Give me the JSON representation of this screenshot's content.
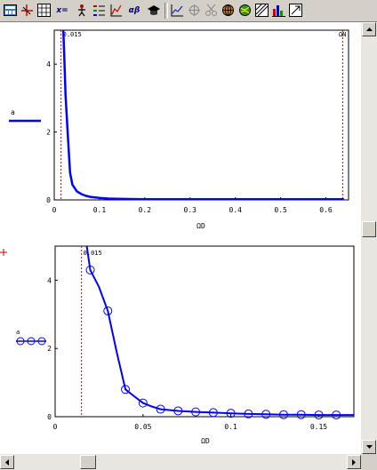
{
  "toolbar": {
    "icons": [
      "calculator-icon",
      "axes-icon",
      "grid-icon",
      "x-equals-icon",
      "figure-icon",
      "legend-icon",
      "plot-icon",
      "alpha-beta-icon",
      "graduation-cap-icon",
      "line-chart-icon",
      "target-icon",
      "scissors-icon",
      "globe-icon",
      "sphere-icon",
      "contour-icon",
      "bar-chart-icon",
      "export-icon"
    ],
    "x_equals_label": "x=",
    "alpha_beta_label": "αβ"
  },
  "chart_data": [
    {
      "type": "line",
      "title": "",
      "xlabel": "ΩD",
      "ylabel": "",
      "xlim": [
        0,
        0.65
      ],
      "ylim": [
        0,
        5
      ],
      "xticks": [
        "0",
        "0.1",
        "0.2",
        "0.3",
        "0.4",
        "0.5",
        "0.6"
      ],
      "yticks": [
        "0",
        "2",
        "4"
      ],
      "legend": [
        "a"
      ],
      "markers": [
        {
          "x": 0.015,
          "label": "0.015"
        },
        {
          "x": 0.637,
          "label": "ΩN"
        }
      ],
      "series": [
        {
          "name": "a",
          "color": "#0000ff",
          "x": [
            0.02,
            0.022,
            0.025,
            0.03,
            0.035,
            0.04,
            0.05,
            0.06,
            0.07,
            0.08,
            0.1,
            0.12,
            0.15,
            0.2,
            0.3,
            0.4,
            0.5,
            0.6,
            0.64
          ],
          "y": [
            5,
            4.3,
            3.1,
            1.9,
            0.8,
            0.45,
            0.25,
            0.17,
            0.12,
            0.09,
            0.06,
            0.04,
            0.03,
            0.02,
            0.02,
            0.02,
            0.02,
            0.02,
            0.02
          ]
        }
      ]
    },
    {
      "type": "line",
      "title": "",
      "xlabel": "ΩD",
      "ylabel": "",
      "xlim": [
        0,
        0.17
      ],
      "ylim": [
        0,
        5
      ],
      "xticks": [
        "0",
        "0.05",
        "0.1",
        "0.15"
      ],
      "yticks": [
        "0",
        "2",
        "4"
      ],
      "legend": [
        "a"
      ],
      "markers": [
        {
          "x": 0.015,
          "label": "0.015"
        }
      ],
      "series": [
        {
          "name": "a",
          "color": "#0000ff",
          "x": [
            0.018,
            0.02,
            0.025,
            0.03,
            0.035,
            0.04,
            0.045,
            0.05,
            0.055,
            0.06,
            0.07,
            0.08,
            0.09,
            0.1,
            0.11,
            0.12,
            0.13,
            0.14,
            0.15,
            0.16,
            0.17
          ],
          "y": [
            5,
            4.3,
            3.8,
            3.1,
            1.9,
            0.8,
            0.6,
            0.4,
            0.3,
            0.22,
            0.17,
            0.14,
            0.12,
            0.1,
            0.08,
            0.07,
            0.06,
            0.06,
            0.05,
            0.05,
            0.05
          ],
          "points_x": [
            0.02,
            0.03,
            0.04,
            0.05,
            0.06,
            0.07,
            0.08,
            0.09,
            0.1,
            0.11,
            0.12,
            0.13,
            0.14,
            0.15,
            0.16
          ],
          "points_y": [
            4.3,
            3.1,
            0.8,
            0.4,
            0.22,
            0.17,
            0.14,
            0.12,
            0.1,
            0.08,
            0.07,
            0.06,
            0.06,
            0.05,
            0.05
          ]
        }
      ]
    }
  ]
}
